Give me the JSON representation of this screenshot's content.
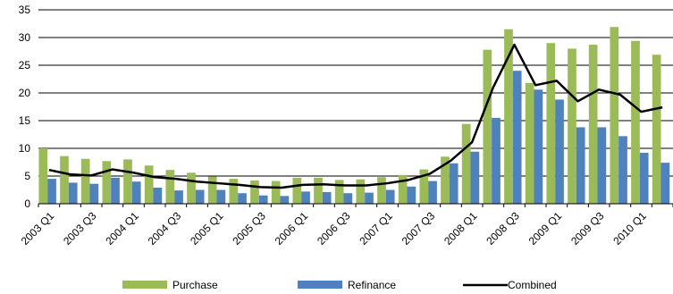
{
  "chart_data": {
    "type": "bar",
    "x_tick_labels": [
      "2003 Q1",
      "2003 Q3",
      "2004 Q1",
      "2004 Q3",
      "2005 Q1",
      "2005 Q3",
      "2006 Q1",
      "2006 Q3",
      "2007 Q1",
      "2007 Q3",
      "2008 Q1",
      "2008 Q3",
      "2009 Q1",
      "2009 Q3",
      "2010 Q1"
    ],
    "categories": [
      "2003 Q1",
      "2003 Q2",
      "2003 Q3",
      "2003 Q4",
      "2004 Q1",
      "2004 Q2",
      "2004 Q3",
      "2004 Q4",
      "2005 Q1",
      "2005 Q2",
      "2005 Q3",
      "2005 Q4",
      "2006 Q1",
      "2006 Q2",
      "2006 Q3",
      "2006 Q4",
      "2007 Q1",
      "2007 Q2",
      "2007 Q3",
      "2007 Q4",
      "2008 Q1",
      "2008 Q2",
      "2008 Q3",
      "2008 Q4",
      "2009 Q1",
      "2009 Q2",
      "2009 Q3",
      "2009 Q4",
      "2010 Q1",
      "2010 Q2"
    ],
    "series": [
      {
        "name": "Purchase",
        "kind": "bar",
        "color": "#9bbb59",
        "values": [
          10.0,
          8.6,
          8.1,
          7.7,
          8.0,
          6.9,
          6.1,
          5.6,
          4.9,
          4.5,
          4.2,
          4.1,
          4.7,
          4.7,
          4.3,
          4.4,
          4.8,
          5.2,
          6.2,
          8.5,
          14.4,
          27.8,
          31.5,
          21.8,
          29.0,
          28.0,
          28.7,
          31.9,
          29.4,
          26.9
        ]
      },
      {
        "name": "Refinance",
        "kind": "bar",
        "color": "#4f81bd",
        "values": [
          4.5,
          3.8,
          3.6,
          4.7,
          4.0,
          2.9,
          2.4,
          2.5,
          2.5,
          1.9,
          1.5,
          1.4,
          2.2,
          2.1,
          1.9,
          2.0,
          2.5,
          3.1,
          4.1,
          7.3,
          9.4,
          15.5,
          24.0,
          20.6,
          18.8,
          13.8,
          13.8,
          12.2,
          9.2,
          7.4
        ]
      },
      {
        "name": "Combined",
        "kind": "line",
        "color": "#000000",
        "values": [
          6.1,
          5.3,
          5.1,
          6.2,
          5.6,
          4.8,
          4.5,
          4.0,
          3.7,
          3.4,
          3.0,
          2.9,
          3.4,
          3.5,
          3.3,
          3.3,
          3.7,
          4.3,
          5.4,
          7.8,
          11.1,
          21.0,
          28.7,
          21.4,
          22.2,
          18.5,
          20.6,
          19.7,
          16.6,
          17.4
        ]
      }
    ],
    "ylim": [
      0,
      35
    ],
    "y_ticks": [
      0,
      5,
      10,
      15,
      20,
      25,
      30,
      35
    ],
    "grid": "horizontal",
    "legend_position": "bottom"
  }
}
